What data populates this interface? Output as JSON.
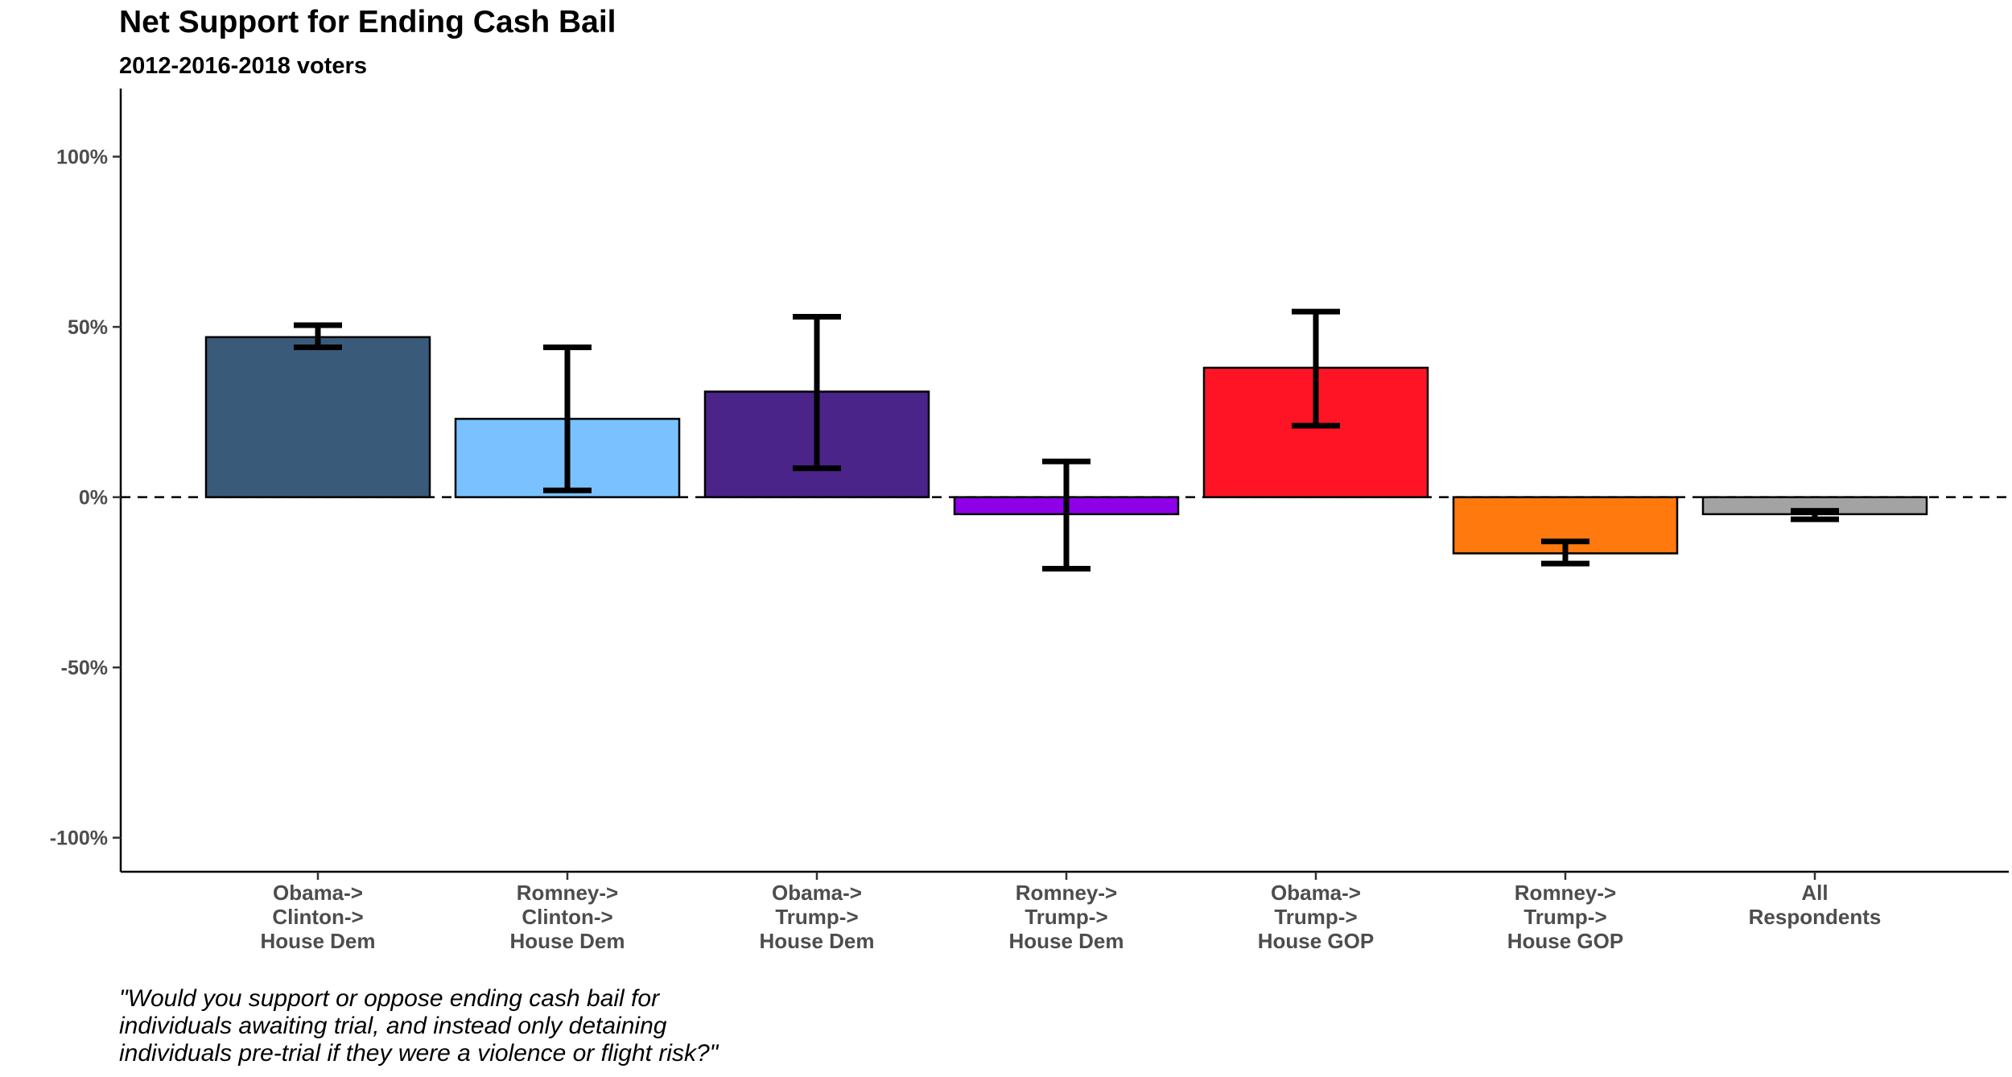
{
  "chart_data": {
    "type": "bar",
    "title": "Net Support for Ending Cash Bail",
    "subtitle": "2012-2016-2018 voters",
    "xlabel": "",
    "ylabel": "",
    "ylim": [
      -110,
      120
    ],
    "yticks": [
      100,
      50,
      0,
      -50,
      -100
    ],
    "ytick_labels": [
      "100%",
      "50%",
      "0%",
      "-50%",
      "-100%"
    ],
    "reference_line": {
      "y": 0,
      "style": "dashed"
    },
    "categories": [
      [
        "Obama->",
        "Clinton->",
        "House Dem"
      ],
      [
        "Romney->",
        "Clinton->",
        "House Dem"
      ],
      [
        "Obama->",
        "Trump->",
        "House Dem"
      ],
      [
        "Romney->",
        "Trump->",
        "House Dem"
      ],
      [
        "Obama->",
        "Trump->",
        "House GOP"
      ],
      [
        "Romney->",
        "Trump->",
        "House GOP"
      ],
      [
        "All",
        "Respondents"
      ]
    ],
    "values": [
      47,
      23,
      31,
      -5,
      38,
      -16.5,
      -5
    ],
    "error_low": [
      44,
      2,
      8.5,
      -21,
      21,
      -19.5,
      -6.5
    ],
    "error_high": [
      50.5,
      44,
      53,
      10.5,
      54.5,
      -13,
      -4
    ],
    "colors": [
      "#3a5a7a",
      "#79c2ff",
      "#4a2488",
      "#8e00e8",
      "#ff1426",
      "#ff790e",
      "#a3a3a3"
    ],
    "caption": [
      "\"Would you support or oppose ending cash bail for",
      "individuals awaiting trial, and instead only detaining",
      "individuals pre-trial if they were a violence or flight risk?\""
    ]
  }
}
